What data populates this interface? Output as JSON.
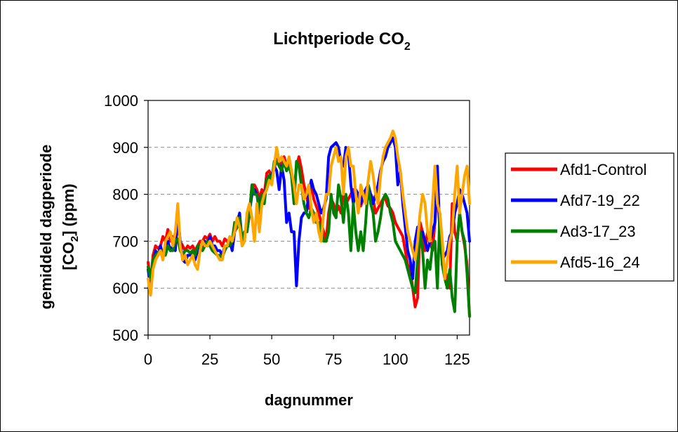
{
  "chart_data": {
    "type": "line",
    "title": {
      "main": "Lichtperiode CO",
      "sub": "2"
    },
    "xlabel": "dagnummer",
    "ylabel": {
      "line1": "gemiddeld dagperiode",
      "line2_pre": "[CO",
      "line2_sub": "2",
      "line2_post": "] (ppm)"
    },
    "xlim": [
      0,
      130
    ],
    "ylim": [
      500,
      1000
    ],
    "xticks": [
      "0",
      "25",
      "50",
      "75",
      "100",
      "125"
    ],
    "yticks": [
      "500",
      "600",
      "700",
      "800",
      "900",
      "1000"
    ],
    "grid": {
      "horizontal": true,
      "style": "dashed"
    },
    "legend_position": "right",
    "series": [
      {
        "name": "Afd1-Control",
        "color": "#ff0000",
        "values": [
          655,
          610,
          670,
          690,
          685,
          690,
          710,
          700,
          725,
          700,
          710,
          700,
          735,
          700,
          690,
          680,
          690,
          685,
          690,
          680,
          690,
          700,
          700,
          710,
          705,
          715,
          700,
          710,
          700,
          700,
          690,
          705,
          700,
          705,
          690,
          720,
          730,
          745,
          700,
          715,
          725,
          755,
          820,
          820,
          810,
          790,
          810,
          800,
          845,
          850,
          835,
          855,
          875,
          870,
          860,
          880,
          860,
          870,
          850,
          800,
          860,
          880,
          855,
          820,
          800,
          770,
          830,
          790,
          775,
          760,
          740,
          720,
          700,
          760,
          790,
          780,
          760,
          775,
          760,
          800,
          780,
          790,
          800,
          810,
          790,
          780,
          775,
          790,
          800,
          810,
          800,
          790,
          760,
          770,
          780,
          790,
          790,
          775,
          770,
          760,
          740,
          730,
          720,
          710,
          680,
          650,
          640,
          600,
          560,
          580,
          740,
          720,
          680,
          720,
          700,
          680,
          740,
          820,
          720,
          650,
          640,
          620,
          600,
          780,
          720,
          700,
          760,
          720,
          690,
          650,
          540
        ]
      },
      {
        "name": "Afd7-19_22",
        "color": "#0000ff",
        "values": [
          640,
          600,
          650,
          680,
          670,
          690,
          670,
          680,
          700,
          680,
          690,
          680,
          760,
          700,
          660,
          655,
          670,
          670,
          680,
          660,
          680,
          690,
          690,
          700,
          690,
          710,
          690,
          690,
          680,
          680,
          670,
          690,
          690,
          700,
          680,
          720,
          740,
          760,
          700,
          720,
          720,
          760,
          800,
          810,
          800,
          770,
          800,
          790,
          830,
          840,
          840,
          860,
          850,
          810,
          860,
          830,
          740,
          760,
          720,
          720,
          605,
          700,
          750,
          760,
          760,
          800,
          830,
          810,
          800,
          780,
          760,
          770,
          790,
          880,
          900,
          905,
          910,
          900,
          870,
          860,
          900,
          890,
          820,
          780,
          810,
          800,
          780,
          800,
          810,
          820,
          800,
          780,
          800,
          820,
          850,
          870,
          880,
          900,
          910,
          920,
          900,
          820,
          850,
          780,
          730,
          680,
          660,
          620,
          700,
          730,
          700,
          720,
          700,
          680,
          700,
          720,
          740,
          860,
          710,
          660,
          670,
          680,
          710,
          720,
          760,
          780,
          810,
          800,
          780,
          760,
          700
        ]
      },
      {
        "name": "Ad3-17_23",
        "color": "#008000",
        "values": [
          645,
          620,
          660,
          670,
          675,
          680,
          680,
          670,
          690,
          680,
          680,
          700,
          705,
          680,
          670,
          680,
          680,
          675,
          680,
          670,
          690,
          690,
          680,
          690,
          700,
          690,
          680,
          675,
          670,
          670,
          665,
          680,
          690,
          690,
          700,
          740,
          730,
          750,
          700,
          720,
          720,
          760,
          820,
          800,
          800,
          760,
          800,
          780,
          830,
          840,
          830,
          870,
          870,
          860,
          850,
          870,
          850,
          860,
          840,
          780,
          870,
          860,
          820,
          780,
          760,
          750,
          770,
          760,
          740,
          740,
          720,
          700,
          700,
          720,
          800,
          760,
          750,
          820,
          790,
          740,
          800,
          760,
          680,
          780,
          720,
          680,
          720,
          680,
          740,
          820,
          780,
          760,
          700,
          720,
          750,
          790,
          800,
          790,
          760,
          740,
          700,
          690,
          680,
          670,
          660,
          640,
          620,
          600,
          590,
          660,
          720,
          680,
          600,
          660,
          640,
          690,
          700,
          600,
          760,
          650,
          620,
          600,
          640,
          580,
          550,
          700,
          760,
          720,
          700,
          630,
          540
        ]
      },
      {
        "name": "Afd5-16_24",
        "color": "#ffa500",
        "values": [
          620,
          585,
          640,
          660,
          670,
          680,
          660,
          700,
          710,
          720,
          690,
          720,
          780,
          690,
          660,
          670,
          650,
          660,
          670,
          650,
          640,
          680,
          700,
          690,
          690,
          700,
          690,
          680,
          670,
          660,
          660,
          690,
          690,
          710,
          700,
          720,
          750,
          730,
          690,
          700,
          760,
          780,
          750,
          700,
          780,
          720,
          780,
          800,
          810,
          830,
          820,
          860,
          900,
          870,
          880,
          870,
          860,
          880,
          850,
          820,
          780,
          820,
          820,
          790,
          800,
          820,
          770,
          740,
          760,
          720,
          700,
          760,
          800,
          800,
          860,
          880,
          900,
          870,
          880,
          800,
          880,
          900,
          860,
          860,
          800,
          760,
          820,
          800,
          780,
          830,
          870,
          840,
          800,
          780,
          840,
          880,
          900,
          910,
          920,
          935,
          920,
          880,
          850,
          800,
          760,
          720,
          700,
          680,
          660,
          700,
          760,
          800,
          780,
          720,
          700,
          780,
          860,
          780,
          760,
          700,
          620,
          660,
          700,
          720,
          800,
          860,
          760,
          800,
          840,
          860,
          780
        ]
      }
    ]
  }
}
